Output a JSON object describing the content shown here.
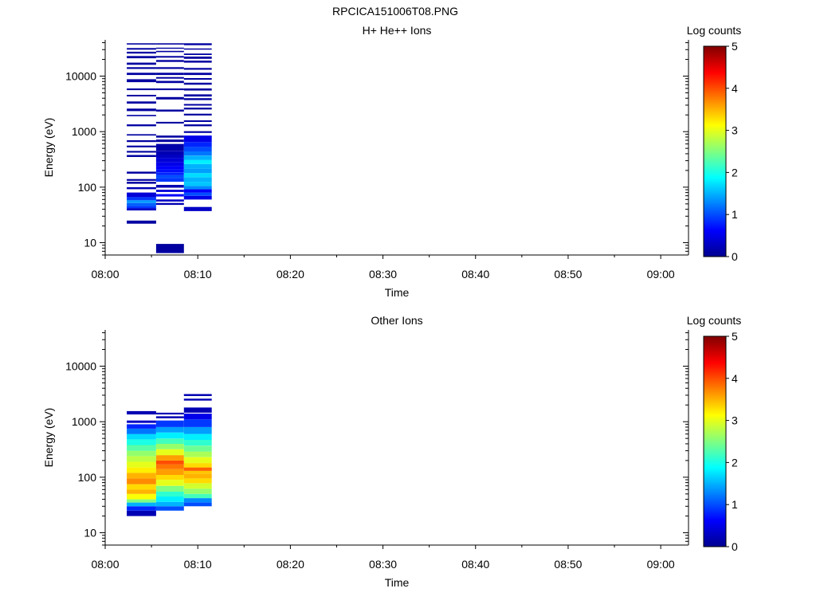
{
  "figure": {
    "title": "RPCICA151006T08.PNG"
  },
  "colorscale": [
    "#00008f",
    "#0000ff",
    "#0080ff",
    "#00ffff",
    "#80ff80",
    "#ffff00",
    "#ff8000",
    "#ff0000",
    "#800000"
  ],
  "chart_data": [
    {
      "type": "heatmap",
      "title": "H+ He++ Ions",
      "xlabel": "Time",
      "ylabel": "Energy (eV)",
      "x_ticks": [
        "08:00",
        "08:10",
        "08:20",
        "08:30",
        "08:40",
        "08:50",
        "09:00"
      ],
      "y_ticks": [
        "10",
        "100",
        "1000",
        "10000"
      ],
      "xlim": [
        "08:00",
        "09:03"
      ],
      "ylim": [
        6,
        45000
      ],
      "y_scale": "log",
      "colorbar": {
        "label": "Log counts",
        "ticks": [
          "0",
          "1",
          "2",
          "3",
          "4",
          "5"
        ],
        "range": [
          0,
          5
        ]
      },
      "columns": [
        {
          "start": "08:02:20",
          "end": "08:05:30",
          "cells": [
            [
              22,
              25,
              0.1
            ],
            [
              38,
              42,
              0.3
            ],
            [
              42,
              46,
              0.9
            ],
            [
              46,
              52,
              1.1
            ],
            [
              52,
              58,
              1.4
            ],
            [
              58,
              66,
              0.9
            ],
            [
              66,
              80,
              0.4
            ],
            [
              92,
              100,
              0.2
            ],
            [
              115,
              125,
              0.1
            ],
            [
              130,
              140,
              0.1
            ],
            [
              175,
              190,
              0.1
            ],
            [
              350,
              380,
              0.1
            ],
            [
              420,
              450,
              0.1
            ],
            [
              520,
              560,
              0.1
            ],
            [
              650,
              700,
              0.1
            ],
            [
              850,
              900,
              0.1
            ],
            [
              1250,
              1350,
              0.1
            ],
            [
              1900,
              2000,
              0.1
            ],
            [
              2350,
              2600,
              0.1
            ],
            [
              3200,
              3500,
              0.1
            ],
            [
              4300,
              4600,
              0.1
            ],
            [
              5600,
              6000,
              0.1
            ],
            [
              7800,
              8800,
              0.1
            ],
            [
              10500,
              11500,
              0.1
            ],
            [
              13500,
              14500,
              0.1
            ],
            [
              16000,
              17500,
              0.1
            ],
            [
              21000,
              23000,
              0.1
            ],
            [
              25500,
              27500,
              0.1
            ],
            [
              30000,
              32000,
              0.1
            ],
            [
              37000,
              39000,
              0.1
            ]
          ]
        },
        {
          "start": "08:05:30",
          "end": "08:08:30",
          "cells": [
            [
              6.5,
              9.5,
              0.1
            ],
            [
              48,
              52,
              0.2
            ],
            [
              55,
              60,
              0.3
            ],
            [
              68,
              75,
              0.6
            ],
            [
              82,
              90,
              0.4
            ],
            [
              98,
              110,
              0.2
            ],
            [
              125,
              145,
              0.9
            ],
            [
              145,
              165,
              1.0
            ],
            [
              165,
              185,
              0.8
            ],
            [
              185,
              210,
              0.7
            ],
            [
              210,
              240,
              0.6
            ],
            [
              240,
              280,
              0.5
            ],
            [
              280,
              330,
              0.4
            ],
            [
              330,
              380,
              0.3
            ],
            [
              380,
              450,
              0.2
            ],
            [
              450,
              600,
              0.15
            ],
            [
              650,
              720,
              0.1
            ],
            [
              780,
              850,
              0.1
            ],
            [
              1400,
              1500,
              0.1
            ],
            [
              2300,
              2500,
              0.1
            ],
            [
              3800,
              4200,
              0.1
            ],
            [
              5600,
              6000,
              0.1
            ],
            [
              7500,
              8200,
              0.1
            ],
            [
              9000,
              9600,
              0.1
            ],
            [
              10500,
              11500,
              0.1
            ],
            [
              13500,
              14500,
              0.1
            ],
            [
              18000,
              19500,
              0.1
            ],
            [
              21500,
              23000,
              0.1
            ],
            [
              27000,
              28500,
              0.1
            ],
            [
              31000,
              32500,
              0.1
            ],
            [
              37000,
              39000,
              0.1
            ]
          ]
        },
        {
          "start": "08:08:30",
          "end": "08:11:30",
          "cells": [
            [
              37,
              44,
              0.3
            ],
            [
              60,
              70,
              0.5
            ],
            [
              70,
              80,
              1.0
            ],
            [
              80,
              92,
              0.6
            ],
            [
              92,
              105,
              1.3
            ],
            [
              105,
              125,
              1.6
            ],
            [
              125,
              150,
              1.5
            ],
            [
              150,
              180,
              1.7
            ],
            [
              180,
              215,
              1.4
            ],
            [
              215,
              260,
              1.5
            ],
            [
              260,
              310,
              1.8
            ],
            [
              310,
              370,
              1.5
            ],
            [
              370,
              440,
              1.2
            ],
            [
              440,
              530,
              1.0
            ],
            [
              530,
              650,
              0.8
            ],
            [
              650,
              850,
              0.5
            ],
            [
              950,
              1020,
              0.1
            ],
            [
              1250,
              1350,
              0.1
            ],
            [
              1500,
              1600,
              0.1
            ],
            [
              1950,
              2100,
              0.1
            ],
            [
              2500,
              2700,
              0.1
            ],
            [
              2950,
              3150,
              0.1
            ],
            [
              3700,
              4000,
              0.1
            ],
            [
              4300,
              4700,
              0.1
            ],
            [
              5500,
              6000,
              0.1
            ],
            [
              7000,
              7600,
              0.1
            ],
            [
              8600,
              9200,
              0.1
            ],
            [
              10500,
              11500,
              0.1
            ],
            [
              13000,
              14000,
              0.1
            ],
            [
              17500,
              19000,
              0.1
            ],
            [
              20500,
              22500,
              0.1
            ],
            [
              24000,
              25500,
              0.1
            ],
            [
              30000,
              31500,
              0.1
            ],
            [
              36000,
              39000,
              0.1
            ]
          ]
        }
      ]
    },
    {
      "type": "heatmap",
      "title": "Other Ions",
      "xlabel": "Time",
      "ylabel": "Energy (eV)",
      "x_ticks": [
        "08:00",
        "08:10",
        "08:20",
        "08:30",
        "08:40",
        "08:50",
        "09:00"
      ],
      "y_ticks": [
        "10",
        "100",
        "1000",
        "10000"
      ],
      "xlim": [
        "08:00",
        "09:03"
      ],
      "ylim": [
        6,
        45000
      ],
      "y_scale": "log",
      "colorbar": {
        "label": "Log counts",
        "ticks": [
          "0",
          "1",
          "2",
          "3",
          "4",
          "5"
        ],
        "range": [
          0,
          5
        ]
      },
      "columns": [
        {
          "start": "08:02:20",
          "end": "08:05:30",
          "cells": [
            [
              20,
              25,
              0.2
            ],
            [
              25,
              30,
              0.8
            ],
            [
              30,
              35,
              1.5
            ],
            [
              35,
              40,
              2.5
            ],
            [
              40,
              50,
              3.1
            ],
            [
              50,
              60,
              3.5
            ],
            [
              60,
              75,
              3.3
            ],
            [
              75,
              95,
              3.7
            ],
            [
              95,
              120,
              3.5
            ],
            [
              120,
              150,
              3.2
            ],
            [
              150,
              190,
              3.0
            ],
            [
              190,
              240,
              2.8
            ],
            [
              240,
              300,
              2.6
            ],
            [
              300,
              380,
              2.3
            ],
            [
              380,
              480,
              2.0
            ],
            [
              480,
              600,
              1.7
            ],
            [
              600,
              750,
              1.2
            ],
            [
              750,
              900,
              0.8
            ],
            [
              950,
              1050,
              0.3
            ],
            [
              1350,
              1550,
              0.2
            ]
          ]
        },
        {
          "start": "08:05:30",
          "end": "08:08:30",
          "cells": [
            [
              25,
              30,
              1.0
            ],
            [
              30,
              36,
              1.5
            ],
            [
              36,
              45,
              1.8
            ],
            [
              45,
              55,
              2.1
            ],
            [
              55,
              70,
              2.5
            ],
            [
              70,
              90,
              3.0
            ],
            [
              90,
              110,
              3.3
            ],
            [
              110,
              140,
              3.6
            ],
            [
              140,
              170,
              3.8
            ],
            [
              170,
              200,
              4.0
            ],
            [
              200,
              250,
              3.6
            ],
            [
              250,
              320,
              3.0
            ],
            [
              320,
              400,
              2.6
            ],
            [
              400,
              500,
              2.2
            ],
            [
              500,
              640,
              1.8
            ],
            [
              640,
              800,
              1.4
            ],
            [
              800,
              1050,
              0.9
            ],
            [
              1150,
              1250,
              0.2
            ],
            [
              1350,
              1450,
              0.2
            ]
          ]
        },
        {
          "start": "08:08:30",
          "end": "08:11:30",
          "cells": [
            [
              30,
              35,
              1.0
            ],
            [
              35,
              42,
              1.3
            ],
            [
              42,
              50,
              2.2
            ],
            [
              50,
              62,
              2.6
            ],
            [
              62,
              78,
              2.9
            ],
            [
              78,
              95,
              3.3
            ],
            [
              95,
              115,
              3.5
            ],
            [
              115,
              130,
              3.4
            ],
            [
              130,
              150,
              3.9
            ],
            [
              150,
              180,
              3.3
            ],
            [
              180,
              230,
              3.0
            ],
            [
              230,
              290,
              2.7
            ],
            [
              290,
              370,
              2.4
            ],
            [
              370,
              470,
              2.1
            ],
            [
              470,
              600,
              1.8
            ],
            [
              600,
              800,
              1.4
            ],
            [
              800,
              1100,
              0.9
            ],
            [
              1100,
              1400,
              0.5
            ],
            [
              1450,
              1800,
              0.2
            ],
            [
              2400,
              2600,
              0.2
            ],
            [
              2900,
              3150,
              0.2
            ]
          ]
        }
      ]
    }
  ]
}
